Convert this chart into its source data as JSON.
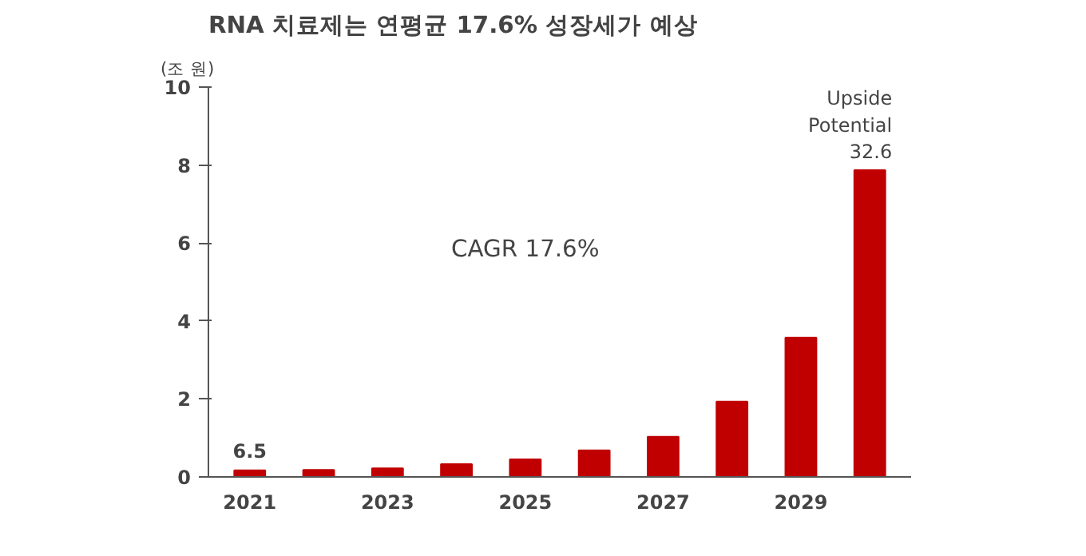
{
  "chart_data": {
    "type": "bar",
    "title": "RNA 치료제는 연평균 17.6% 성장세가 예상",
    "ylabel": "(조 원)",
    "categories": [
      "2021",
      null,
      "2023",
      null,
      "2025",
      null,
      "2027",
      null,
      "2029",
      null
    ],
    "values": [
      0.17,
      0.18,
      0.22,
      0.33,
      0.45,
      0.68,
      1.03,
      1.93,
      3.57,
      7.87
    ],
    "color": "#c00000",
    "ylim": [
      0,
      10
    ],
    "yticks": [
      0,
      2,
      4,
      6,
      8,
      10
    ],
    "grid": false,
    "annotations": [
      {
        "text": "6.5",
        "x": "2021",
        "y": 0.17
      },
      "CAGR 17.6%",
      "Upside\nPotential\n32.6"
    ]
  }
}
